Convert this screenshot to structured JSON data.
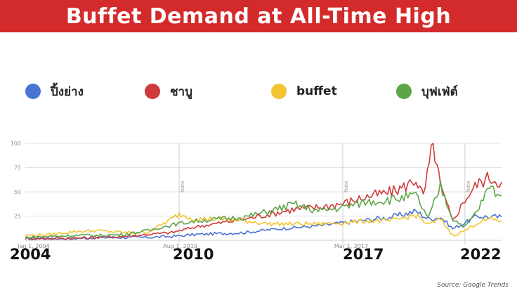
{
  "header": {
    "title": "Buffet Demand at All-Time High"
  },
  "legend": [
    {
      "label": "ปิ้งย่าง",
      "color": "#4a74d1"
    },
    {
      "label": "ชาบู",
      "color": "#d13a3a"
    },
    {
      "label": "buffet",
      "color": "#f4c531"
    },
    {
      "label": "บุฟเฟ่ต์",
      "color": "#5ea548"
    }
  ],
  "footer": {
    "years": [
      "2004",
      "2010",
      "2017",
      "2022"
    ],
    "source": "Source: Google Trends"
  },
  "chart_data": {
    "type": "line",
    "ylim": [
      0,
      100
    ],
    "y_ticks": [
      "100",
      "75",
      "50",
      "25"
    ],
    "x_range": [
      2004.0,
      2023.5
    ],
    "annotations": [
      {
        "x": 2010.3,
        "text": "Note"
      },
      {
        "x": 2017.0,
        "text": "Note"
      },
      {
        "x": 2022.0,
        "text": "Note"
      }
    ],
    "date_labels": [
      {
        "x": 2004.0,
        "text": "Jan 1, 2004"
      },
      {
        "x": 2010.0,
        "text": "Aug 1, 2010"
      },
      {
        "x": 2017.0,
        "text": "Mar 1, 2017"
      }
    ],
    "series": [
      {
        "name": "ปิ้งย่าง",
        "color": "#4a74d1",
        "x": [
          2004,
          2005,
          2006,
          2007,
          2008,
          2009,
          2010,
          2011,
          2012,
          2013,
          2014,
          2015,
          2016,
          2017,
          2018,
          2019,
          2020,
          2020.5,
          2021,
          2021.5,
          2022,
          2022.5,
          2023,
          2023.5
        ],
        "y": [
          2,
          2,
          2,
          3,
          3,
          3,
          4,
          6,
          7,
          8,
          11,
          13,
          15,
          18,
          21,
          24,
          30,
          22,
          24,
          12,
          18,
          25,
          24,
          24
        ]
      },
      {
        "name": "ชาบู",
        "color": "#d13a3a",
        "x": [
          2004,
          2005,
          2006,
          2007,
          2008,
          2009,
          2010,
          2011,
          2012,
          2013,
          2014,
          2015,
          2016,
          2017,
          2018,
          2019,
          2019.5,
          2020,
          2020.3,
          2020.7,
          2021,
          2021.5,
          2022,
          2022.5,
          2023,
          2023.5
        ],
        "y": [
          2,
          2,
          2,
          3,
          4,
          6,
          8,
          14,
          18,
          22,
          27,
          32,
          34,
          38,
          45,
          50,
          55,
          63,
          45,
          100,
          55,
          20,
          42,
          58,
          65,
          60
        ]
      },
      {
        "name": "buffet",
        "color": "#f4c531",
        "x": [
          2004,
          2005,
          2006,
          2007,
          2008,
          2009,
          2010,
          2010.3,
          2011,
          2012,
          2013,
          2014,
          2015,
          2016,
          2017,
          2018,
          2019,
          2020,
          2020.5,
          2021,
          2021.5,
          2022,
          2022.5,
          2023,
          2023.5
        ],
        "y": [
          5,
          6,
          9,
          10,
          8,
          8,
          22,
          27,
          22,
          22,
          20,
          17,
          17,
          17,
          18,
          20,
          20,
          26,
          16,
          22,
          5,
          10,
          18,
          22,
          20
        ]
      },
      {
        "name": "บุฟเฟ่ต์",
        "color": "#5ea548",
        "x": [
          2004,
          2005,
          2006,
          2007,
          2008,
          2009,
          2010,
          2011,
          2012,
          2013,
          2014,
          2015,
          2016,
          2017,
          2018,
          2019,
          2020,
          2020.5,
          2021,
          2021.5,
          2022,
          2022.5,
          2023,
          2023.5
        ],
        "y": [
          3,
          4,
          5,
          5,
          6,
          10,
          16,
          20,
          22,
          24,
          30,
          37,
          30,
          34,
          40,
          42,
          46,
          22,
          56,
          22,
          14,
          30,
          55,
          46
        ]
      }
    ]
  }
}
